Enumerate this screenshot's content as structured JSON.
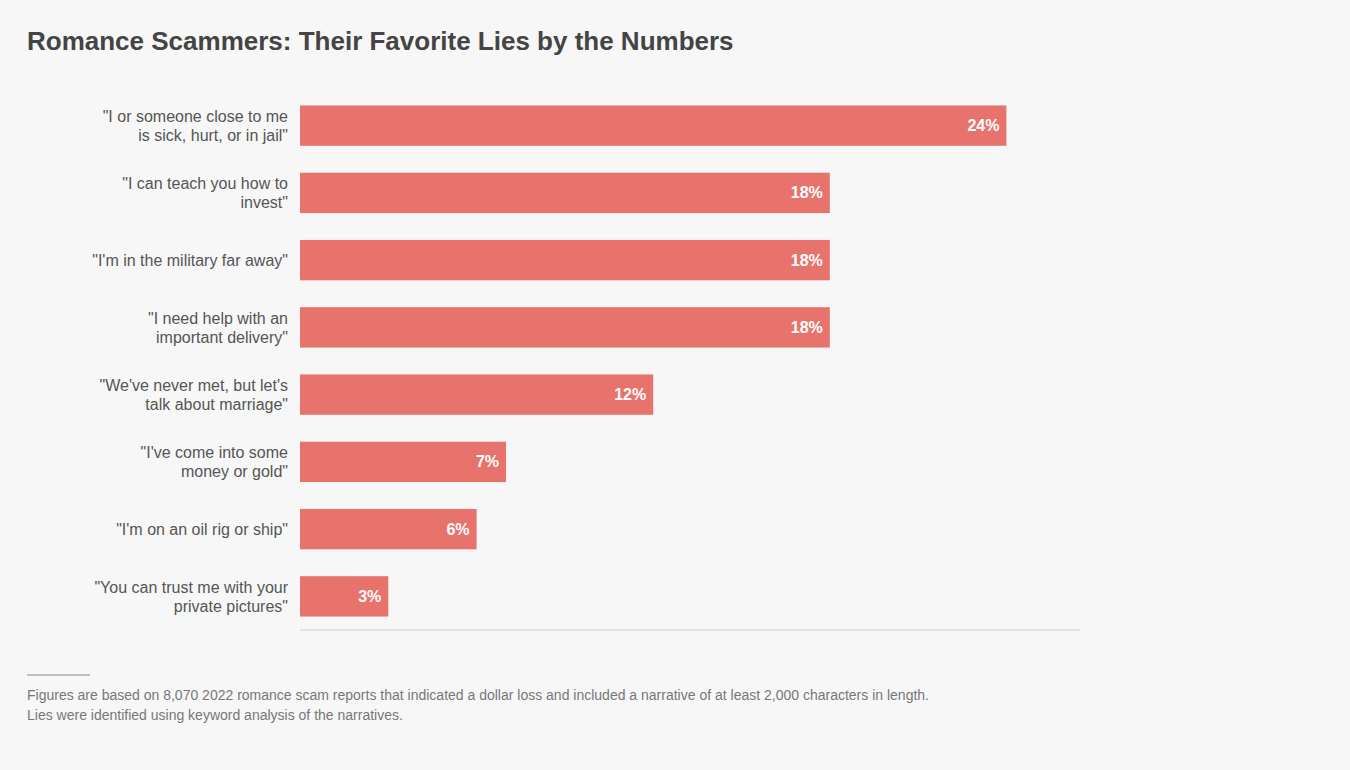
{
  "chart_data": {
    "type": "bar",
    "orientation": "horizontal",
    "title": "Romance Scammers: Their Favorite Lies by the Numbers",
    "categories": [
      "\"I or someone close to me\nis sick, hurt, or in jail\"",
      "\"I can teach you how to\ninvest\"",
      "\"I'm in the military far away\"",
      "\"I need help with an\nimportant delivery\"",
      "\"We've never met, but let's\ntalk about marriage\"",
      "\"I've come into some\nmoney or gold\"",
      "\"I'm on an oil rig or ship\"",
      "\"You can trust me with your\nprivate pictures\""
    ],
    "values": [
      24,
      18,
      18,
      18,
      12,
      7,
      6,
      3
    ],
    "value_labels": [
      "24%",
      "18%",
      "18%",
      "18%",
      "12%",
      "7%",
      "6%",
      "3%"
    ],
    "data_labels": true,
    "color": "#E8736C",
    "xlim": [
      0,
      26.5
    ],
    "tick_labels": "y",
    "grid": false,
    "annotations": [
      "Figures are based on 8,070 2022 romance scam reports that indicated a dollar loss and included a narrative of at least 2,000 characters in length.",
      "Lies were identified using keyword analysis of the narratives."
    ]
  }
}
